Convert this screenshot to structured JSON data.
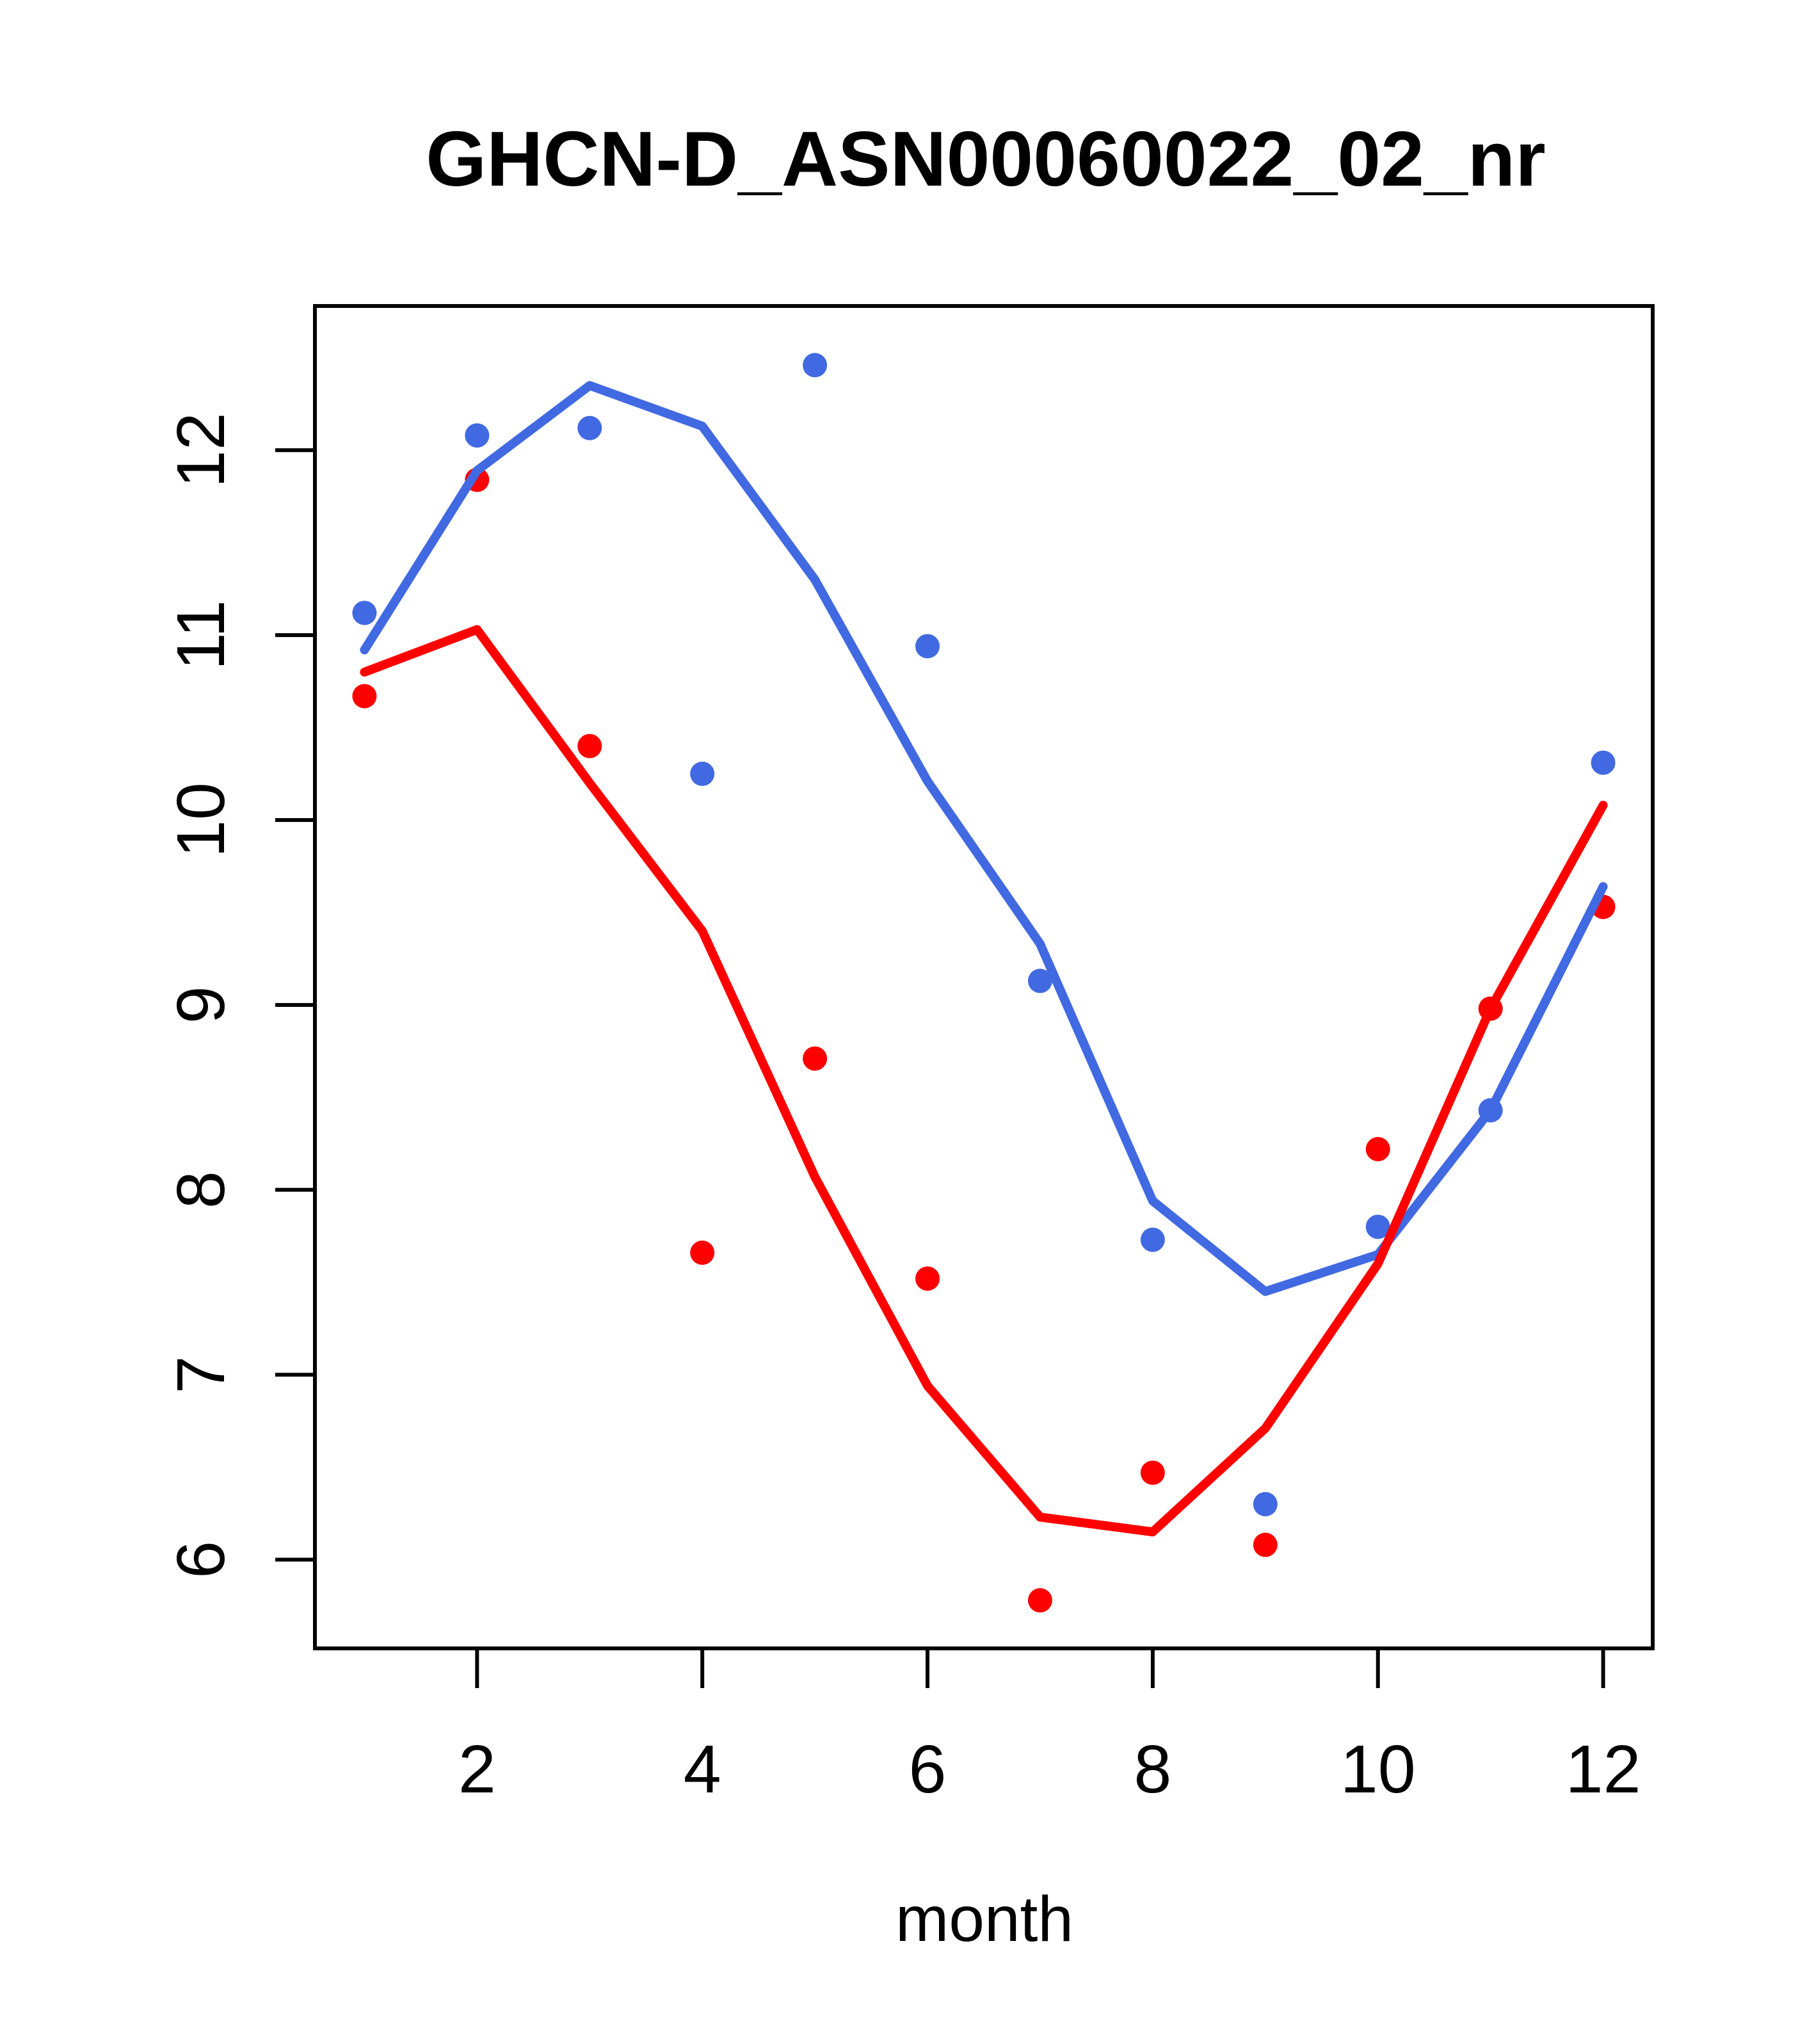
{
  "title": "GHCN-D_ASN00060022_02_nr",
  "chart_data": {
    "type": "scatter",
    "title": "GHCN-D_ASN00060022_02_nr",
    "xlabel": "month",
    "ylabel": "",
    "grid": false,
    "legend_position": "none",
    "x": [
      1,
      2,
      3,
      4,
      5,
      6,
      7,
      8,
      9,
      10,
      11,
      12
    ],
    "x_ticks": [
      2,
      4,
      6,
      8,
      10,
      12
    ],
    "y_ticks": [
      6,
      7,
      8,
      9,
      10,
      11,
      12
    ],
    "xlim": [
      0.56,
      12.44
    ],
    "ylim": [
      5.52,
      12.78
    ],
    "colors": {
      "blue": "#4169E1",
      "red": "#FF0000",
      "axis": "#000000"
    },
    "series": [
      {
        "name": "blue-points",
        "kind": "points",
        "color": "#4169E1",
        "values": [
          11.12,
          12.08,
          12.12,
          10.25,
          12.46,
          10.94,
          9.13,
          7.73,
          6.3,
          7.8,
          8.43,
          10.31
        ]
      },
      {
        "name": "blue-lowess-line",
        "kind": "line",
        "color": "#4169E1",
        "values": [
          10.92,
          11.89,
          12.35,
          12.13,
          11.3,
          10.21,
          9.33,
          7.94,
          7.45,
          7.65,
          8.43,
          9.64
        ]
      },
      {
        "name": "red-points",
        "kind": "points",
        "color": "#FF0000",
        "values": [
          10.67,
          11.84,
          10.4,
          7.66,
          8.71,
          7.52,
          5.78,
          6.47,
          6.08,
          8.22,
          8.98,
          9.53
        ]
      },
      {
        "name": "red-lowess-line",
        "kind": "line",
        "color": "#FF0000",
        "values": [
          10.8,
          11.03,
          10.2,
          9.4,
          8.07,
          6.94,
          6.23,
          6.15,
          6.71,
          7.6,
          8.98,
          10.08
        ]
      }
    ]
  }
}
